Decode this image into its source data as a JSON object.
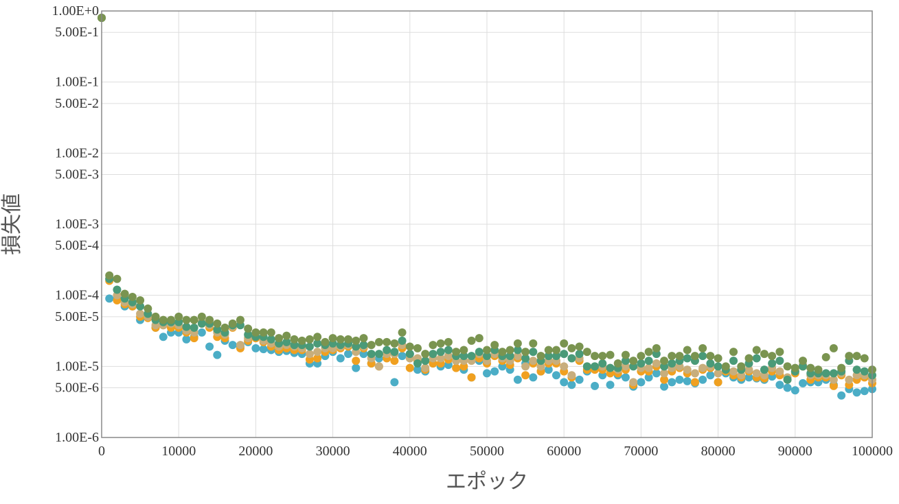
{
  "chart_data": {
    "type": "scatter",
    "title": "",
    "xlabel": "エポック",
    "ylabel": "損失値",
    "xlim": [
      0,
      100000
    ],
    "ylim": [
      1e-06,
      1
    ],
    "yscale": "log",
    "grid": true,
    "x_ticks": [
      {
        "value": 0,
        "label": "0"
      },
      {
        "value": 10000,
        "label": "10000"
      },
      {
        "value": 20000,
        "label": "20000"
      },
      {
        "value": 30000,
        "label": "30000"
      },
      {
        "value": 40000,
        "label": "40000"
      },
      {
        "value": 50000,
        "label": "50000"
      },
      {
        "value": 60000,
        "label": "60000"
      },
      {
        "value": 70000,
        "label": "70000"
      },
      {
        "value": 80000,
        "label": "80000"
      },
      {
        "value": 90000,
        "label": "90000"
      },
      {
        "value": 100000,
        "label": "100000"
      }
    ],
    "y_ticks": [
      {
        "value": 1,
        "label": "1.00E+0"
      },
      {
        "value": 0.5,
        "label": "5.00E-1"
      },
      {
        "value": 0.1,
        "label": "1.00E-1"
      },
      {
        "value": 0.05,
        "label": "5.00E-2"
      },
      {
        "value": 0.01,
        "label": "1.00E-2"
      },
      {
        "value": 0.005,
        "label": "5.00E-3"
      },
      {
        "value": 0.001,
        "label": "1.00E-3"
      },
      {
        "value": 0.0005,
        "label": "5.00E-4"
      },
      {
        "value": 0.0001,
        "label": "1.00E-4"
      },
      {
        "value": 5e-05,
        "label": "5.00E-5"
      },
      {
        "value": 1e-05,
        "label": "1.00E-5"
      },
      {
        "value": 5e-06,
        "label": "5.00E-6"
      },
      {
        "value": 1e-06,
        "label": "1.00E-6"
      }
    ],
    "x": [
      0,
      1000,
      2000,
      3000,
      4000,
      5000,
      6000,
      7000,
      8000,
      9000,
      10000,
      11000,
      12000,
      13000,
      14000,
      15000,
      16000,
      17000,
      18000,
      19000,
      20000,
      21000,
      22000,
      23000,
      24000,
      25000,
      26000,
      27000,
      28000,
      29000,
      30000,
      31000,
      32000,
      33000,
      34000,
      35000,
      36000,
      37000,
      38000,
      39000,
      40000,
      41000,
      42000,
      43000,
      44000,
      45000,
      46000,
      47000,
      48000,
      49000,
      50000,
      51000,
      52000,
      53000,
      54000,
      55000,
      56000,
      57000,
      58000,
      59000,
      60000,
      61000,
      62000,
      63000,
      64000,
      65000,
      66000,
      67000,
      68000,
      69000,
      70000,
      71000,
      72000,
      73000,
      74000,
      75000,
      76000,
      77000,
      78000,
      79000,
      80000,
      81000,
      82000,
      83000,
      84000,
      85000,
      86000,
      87000,
      88000,
      89000,
      90000,
      91000,
      92000,
      93000,
      94000,
      95000,
      96000,
      97000,
      98000,
      99000,
      100000
    ],
    "series": [
      {
        "color": "#4badc6",
        "values": [
          0.8,
          9e-05,
          9e-05,
          7e-05,
          7e-05,
          4.5e-05,
          5e-05,
          3.5e-05,
          2.6e-05,
          3e-05,
          3e-05,
          2.4e-05,
          2.6e-05,
          3e-05,
          1.9e-05,
          1.45e-05,
          2.3e-05,
          2e-05,
          1.9e-05,
          2.2e-05,
          1.8e-05,
          1.75e-05,
          1.7e-05,
          1.6e-05,
          1.65e-05,
          1.55e-05,
          1.5e-05,
          1.1e-05,
          1.1e-05,
          1.4e-05,
          1.6e-05,
          1.3e-05,
          1.5e-05,
          9.5e-06,
          1.5e-05,
          1.1e-05,
          1.3e-05,
          1.5e-05,
          6e-06,
          1.4e-05,
          1.5e-05,
          9e-06,
          8.5e-06,
          1.1e-05,
          1e-05,
          1.05e-05,
          1.2e-05,
          9e-06,
          7e-06,
          1.2e-05,
          8e-06,
          8.5e-06,
          1e-05,
          9e-06,
          6.5e-06,
          1.1e-05,
          7e-06,
          8.5e-06,
          9e-06,
          7.5e-06,
          6e-06,
          5.5e-06,
          6.5e-06,
          8.5e-06,
          5.3e-06,
          7.5e-06,
          5.5e-06,
          7.5e-06,
          7e-06,
          5.2e-06,
          6e-06,
          7e-06,
          8e-06,
          5.2e-06,
          6e-06,
          6.5e-06,
          6.2e-06,
          5.8e-06,
          6.5e-06,
          7.5e-06,
          6e-06,
          8e-06,
          7e-06,
          6.5e-06,
          7e-06,
          6.8e-06,
          6.5e-06,
          7.2e-06,
          5.5e-06,
          5e-06,
          4.6e-06,
          5.8e-06,
          6e-06,
          6e-06,
          6.5e-06,
          5.5e-06,
          3.9e-06,
          4.8e-06,
          4.3e-06,
          4.5e-06,
          4.8e-06
        ]
      },
      {
        "color": "#f0a020",
        "values": [
          0.8,
          0.00016,
          8.5e-05,
          7.5e-05,
          7e-05,
          5e-05,
          4.8e-05,
          3.5e-05,
          3.8e-05,
          3.5e-05,
          3.5e-05,
          3e-05,
          2.5e-05,
          4e-05,
          3.5e-05,
          2.6e-05,
          2.5e-05,
          3.5e-05,
          1.8e-05,
          2.3e-05,
          2.5e-05,
          2.2e-05,
          1.9e-05,
          1.7e-05,
          1.8e-05,
          1.7e-05,
          1.7e-05,
          1.25e-05,
          1.3e-05,
          1.6e-05,
          1.7e-05,
          1.8e-05,
          1.9e-05,
          1.2e-05,
          1.8e-05,
          1.1e-05,
          1e-05,
          1.3e-05,
          1.2e-05,
          1.8e-05,
          9.5e-06,
          1.2e-05,
          9e-06,
          1.1e-05,
          1.1e-05,
          1.25e-05,
          9.5e-06,
          1e-05,
          7e-06,
          1.3e-05,
          1.1e-05,
          1.4e-05,
          1.2e-05,
          1.05e-05,
          1.3e-05,
          7.5e-06,
          1.1e-05,
          8.5e-06,
          1.1e-05,
          1.1e-05,
          8.5e-06,
          7e-06,
          1.2e-05,
          9e-06,
          9e-06,
          9e-06,
          8e-06,
          8e-06,
          9e-06,
          5.5e-06,
          8.5e-06,
          8.5e-06,
          1e-05,
          6.5e-06,
          8.5e-06,
          9.5e-06,
          8e-06,
          6e-06,
          9e-06,
          9.5e-06,
          6e-06,
          8.5e-06,
          7.5e-06,
          7e-06,
          8.5e-06,
          7e-06,
          6.8e-06,
          8.5e-06,
          7.5e-06,
          6.5e-06,
          8e-06,
          1e-05,
          6.5e-06,
          7e-06,
          7e-06,
          5.3e-06,
          7.5e-06,
          5.5e-06,
          6.5e-06,
          7e-06,
          5.8e-06
        ]
      },
      {
        "color": "#c8ae7c",
        "values": [
          0.8,
          0.00017,
          0.0001,
          8e-05,
          7.5e-05,
          5.5e-05,
          5e-05,
          3.8e-05,
          3.8e-05,
          4e-05,
          3.8e-05,
          3.2e-05,
          3e-05,
          4.2e-05,
          3.8e-05,
          3e-05,
          2.8e-05,
          3.6e-05,
          2e-05,
          2.5e-05,
          2.6e-05,
          2.3e-05,
          2.1e-05,
          1.9e-05,
          2e-05,
          1.9e-05,
          1.8e-05,
          1.5e-05,
          1.6e-05,
          1.8e-05,
          1.8e-05,
          1.9e-05,
          2e-05,
          1.6e-05,
          1.9e-05,
          1.3e-05,
          1e-05,
          1.5e-05,
          1.5e-05,
          2e-05,
          1.3e-05,
          1.3e-05,
          9.5e-06,
          1.3e-05,
          1.3e-05,
          1.4e-05,
          1.2e-05,
          1.2e-05,
          1.2e-05,
          1.5e-05,
          1.2e-05,
          1.5e-05,
          1.3e-05,
          1.2e-05,
          1.4e-05,
          1e-05,
          1.2e-05,
          1e-05,
          1.2e-05,
          1.2e-05,
          1e-05,
          7.5e-06,
          1.3e-05,
          1e-05,
          1e-05,
          1e-05,
          9.5e-06,
          9e-06,
          1e-05,
          6e-06,
          9.5e-06,
          9.5e-06,
          1.1e-05,
          8e-06,
          9.5e-06,
          1e-05,
          9e-06,
          8e-06,
          9.5e-06,
          1e-05,
          8e-06,
          9e-06,
          8.5e-06,
          7.5e-06,
          9e-06,
          8e-06,
          7.5e-06,
          9.5e-06,
          8.5e-06,
          7e-06,
          8.5e-06,
          1.05e-05,
          7.5e-06,
          7.5e-06,
          7.5e-06,
          6.5e-06,
          8e-06,
          6.5e-06,
          7.5e-06,
          7.5e-06,
          6.5e-06
        ]
      },
      {
        "color": "#4a9a78",
        "values": [
          0.8,
          0.00017,
          0.00012,
          9e-05,
          8e-05,
          7e-05,
          5.5e-05,
          4.5e-05,
          4.2e-05,
          4.2e-05,
          4.2e-05,
          3.6e-05,
          3.5e-05,
          4e-05,
          4e-05,
          3.3e-05,
          3e-05,
          3.8e-05,
          3.8e-05,
          2.8e-05,
          2.6e-05,
          2.6e-05,
          2.4e-05,
          2.1e-05,
          2.2e-05,
          2e-05,
          2e-05,
          1.9e-05,
          2.1e-05,
          2e-05,
          2.1e-05,
          2e-05,
          2.1e-05,
          1.9e-05,
          2e-05,
          1.5e-05,
          1.5e-05,
          1.7e-05,
          1.6e-05,
          2.3e-05,
          1.5e-05,
          1.1e-05,
          1.2e-05,
          1.5e-05,
          1.6e-05,
          1.7e-05,
          1.4e-05,
          1.4e-05,
          1.4e-05,
          1.6e-05,
          1.4e-05,
          1.7e-05,
          1.4e-05,
          1.4e-05,
          1.7e-05,
          1.3e-05,
          1.6e-05,
          1.2e-05,
          1.4e-05,
          1.4e-05,
          1.5e-05,
          1.3e-05,
          1.5e-05,
          1e-05,
          1e-05,
          1.1e-05,
          9.5e-06,
          9.5e-06,
          1.2e-05,
          1e-05,
          1.1e-05,
          1.2e-05,
          1.5e-05,
          1e-05,
          1.1e-05,
          1.2e-05,
          1.3e-05,
          1.2e-05,
          1.4e-05,
          1.1e-05,
          1e-05,
          9e-06,
          1.2e-05,
          9e-06,
          1.1e-05,
          1.3e-05,
          9e-06,
          1.1e-05,
          1.2e-05,
          6.5e-06,
          8.5e-06,
          1e-05,
          8e-06,
          8e-06,
          8e-06,
          8e-06,
          8.5e-06,
          1.2e-05,
          9e-06,
          8.5e-06,
          7.5e-06
        ]
      },
      {
        "color": "#7a9450",
        "values": [
          0.8,
          0.00019,
          0.00017,
          0.000105,
          9.5e-05,
          8.5e-05,
          6.5e-05,
          5e-05,
          4.5e-05,
          4.5e-05,
          5e-05,
          4.5e-05,
          4.5e-05,
          5e-05,
          4.5e-05,
          4e-05,
          3.5e-05,
          4e-05,
          4.5e-05,
          3.4e-05,
          3e-05,
          3e-05,
          3e-05,
          2.5e-05,
          2.7e-05,
          2.4e-05,
          2.3e-05,
          2.4e-05,
          2.6e-05,
          2.2e-05,
          2.5e-05,
          2.4e-05,
          2.4e-05,
          2.3e-05,
          2.5e-05,
          2e-05,
          2.2e-05,
          2.2e-05,
          2.1e-05,
          3e-05,
          1.9e-05,
          1.8e-05,
          1.5e-05,
          2e-05,
          2.1e-05,
          2.2e-05,
          1.6e-05,
          1.7e-05,
          2.3e-05,
          2.5e-05,
          1.7e-05,
          2e-05,
          1.6e-05,
          1.7e-05,
          2.1e-05,
          1.6e-05,
          2.1e-05,
          1.4e-05,
          1.7e-05,
          1.7e-05,
          2.1e-05,
          1.8e-05,
          1.9e-05,
          1.6e-05,
          1.4e-05,
          1.4e-05,
          1.45e-05,
          1.1e-05,
          1.45e-05,
          1.2e-05,
          1.4e-05,
          1.6e-05,
          1.8e-05,
          1.2e-05,
          1.4e-05,
          1.4e-05,
          1.7e-05,
          1.4e-05,
          1.8e-05,
          1.4e-05,
          1.3e-05,
          1e-05,
          1.6e-05,
          1e-05,
          1.3e-05,
          1.7e-05,
          1.5e-05,
          1.4e-05,
          1.6e-05,
          1e-05,
          9.5e-06,
          1.2e-05,
          9.5e-06,
          9e-06,
          1.35e-05,
          1.8e-05,
          9.5e-06,
          1.4e-05,
          1.4e-05,
          1.3e-05,
          9e-06
        ]
      }
    ]
  }
}
